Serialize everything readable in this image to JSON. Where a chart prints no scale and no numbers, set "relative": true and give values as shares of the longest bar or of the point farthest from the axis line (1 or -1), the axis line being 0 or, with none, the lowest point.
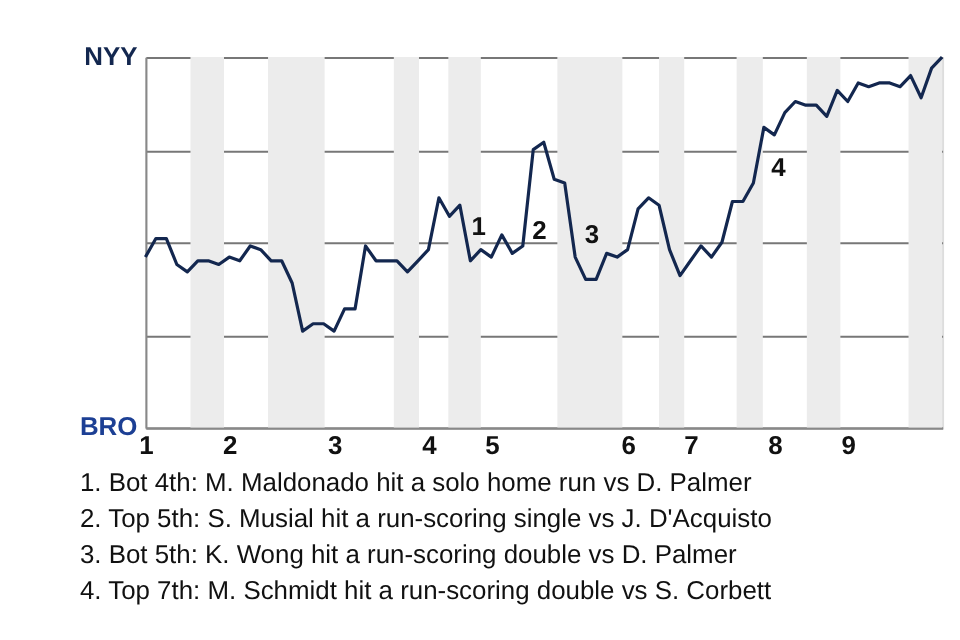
{
  "chart_data": {
    "type": "line",
    "relative": true,
    "categories": [
      "1",
      null,
      null,
      null,
      null,
      null,
      null,
      null,
      "2",
      null,
      null,
      null,
      null,
      null,
      null,
      null,
      null,
      null,
      "3",
      null,
      null,
      null,
      null,
      null,
      null,
      null,
      null,
      "4",
      null,
      null,
      null,
      null,
      null,
      "5",
      null,
      null,
      null,
      null,
      null,
      null,
      null,
      null,
      null,
      null,
      null,
      null,
      "6",
      null,
      null,
      null,
      null,
      null,
      "7",
      null,
      null,
      null,
      null,
      null,
      null,
      null,
      "8",
      null,
      null,
      null,
      null,
      null,
      null,
      "9",
      null,
      null,
      null,
      null,
      null,
      null,
      null,
      null,
      null
    ],
    "series": [
      {
        "color": "#13274f",
        "values": [
          0.46,
          0.51,
          0.51,
          0.44,
          0.42,
          0.45,
          0.45,
          0.44,
          0.46,
          0.45,
          0.49,
          0.48,
          0.45,
          0.45,
          0.39,
          0.26,
          0.28,
          0.28,
          0.26,
          0.32,
          0.32,
          0.49,
          0.45,
          0.45,
          0.45,
          0.42,
          0.45,
          0.48,
          0.62,
          0.57,
          0.6,
          0.45,
          0.48,
          0.46,
          0.52,
          0.47,
          0.49,
          0.75,
          0.77,
          0.67,
          0.66,
          0.46,
          0.4,
          0.4,
          0.47,
          0.46,
          0.48,
          0.59,
          0.62,
          0.6,
          0.48,
          0.41,
          0.45,
          0.49,
          0.46,
          0.5,
          0.61,
          0.61,
          0.66,
          0.81,
          0.79,
          0.85,
          0.88,
          0.87,
          0.87,
          0.84,
          0.91,
          0.88,
          0.93,
          0.92,
          0.93,
          0.93,
          0.92,
          0.95,
          0.89,
          0.97,
          1.0
        ]
      }
    ],
    "grid": "y",
    "annotations": [
      "NYY",
      "BRO",
      "1",
      "2",
      "3",
      "4",
      "1. Bot 4th: M. Maldonado hit a solo home run vs D. Palmer",
      "2. Top 5th: S. Musial hit a run-scoring single vs J. D'Acquisto",
      "3. Bot 5th: K. Wong hit a run-scoring double vs D. Palmer",
      "4. Top 7th: M. Schmidt hit a run-scoring double vs S. Corbett"
    ]
  }
}
